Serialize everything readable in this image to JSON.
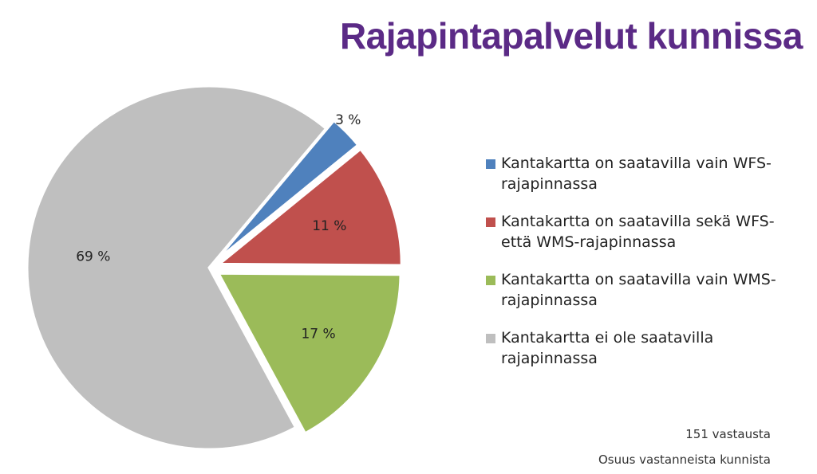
{
  "title": "Rajapintapalvelut kunnissa",
  "chart_data": {
    "type": "pie",
    "slices": [
      {
        "label": "Kantakartta on saatavilla vain WFS-rajapinnassa",
        "value": 3,
        "value_label": "3 %",
        "color": "#4f81bd"
      },
      {
        "label": "Kantakartta on saatavilla sekä WFS- että WMS-rajapinnassa",
        "value": 11,
        "value_label": "11 %",
        "color": "#c0504d"
      },
      {
        "label": "Kantakartta on saatavilla vain WMS-rajapinnassa",
        "value": 17,
        "value_label": "17 %",
        "color": "#9bbb59"
      },
      {
        "label": "Kantakartta ei ole saatavilla rajapinnassa",
        "value": 69,
        "value_label": "69 %",
        "color": "#bfbfbf"
      }
    ],
    "legend_position": "right",
    "exploded": true
  },
  "legend": [
    {
      "line1": "Kantakartta on saatavilla vain WFS-",
      "line2": "rajapinnassa"
    },
    {
      "line1": "Kantakartta on saatavilla sekä WFS-",
      "line2": "että WMS-rajapinnassa"
    },
    {
      "line1": "Kantakartta on saatavilla vain WMS-",
      "line2": "rajapinnassa"
    },
    {
      "line1": "Kantakartta ei ole saatavilla",
      "line2": "rajapinnassa"
    }
  ],
  "notes": {
    "responses": "151 vastausta",
    "share": "Osuus vastanneista kunnista"
  }
}
